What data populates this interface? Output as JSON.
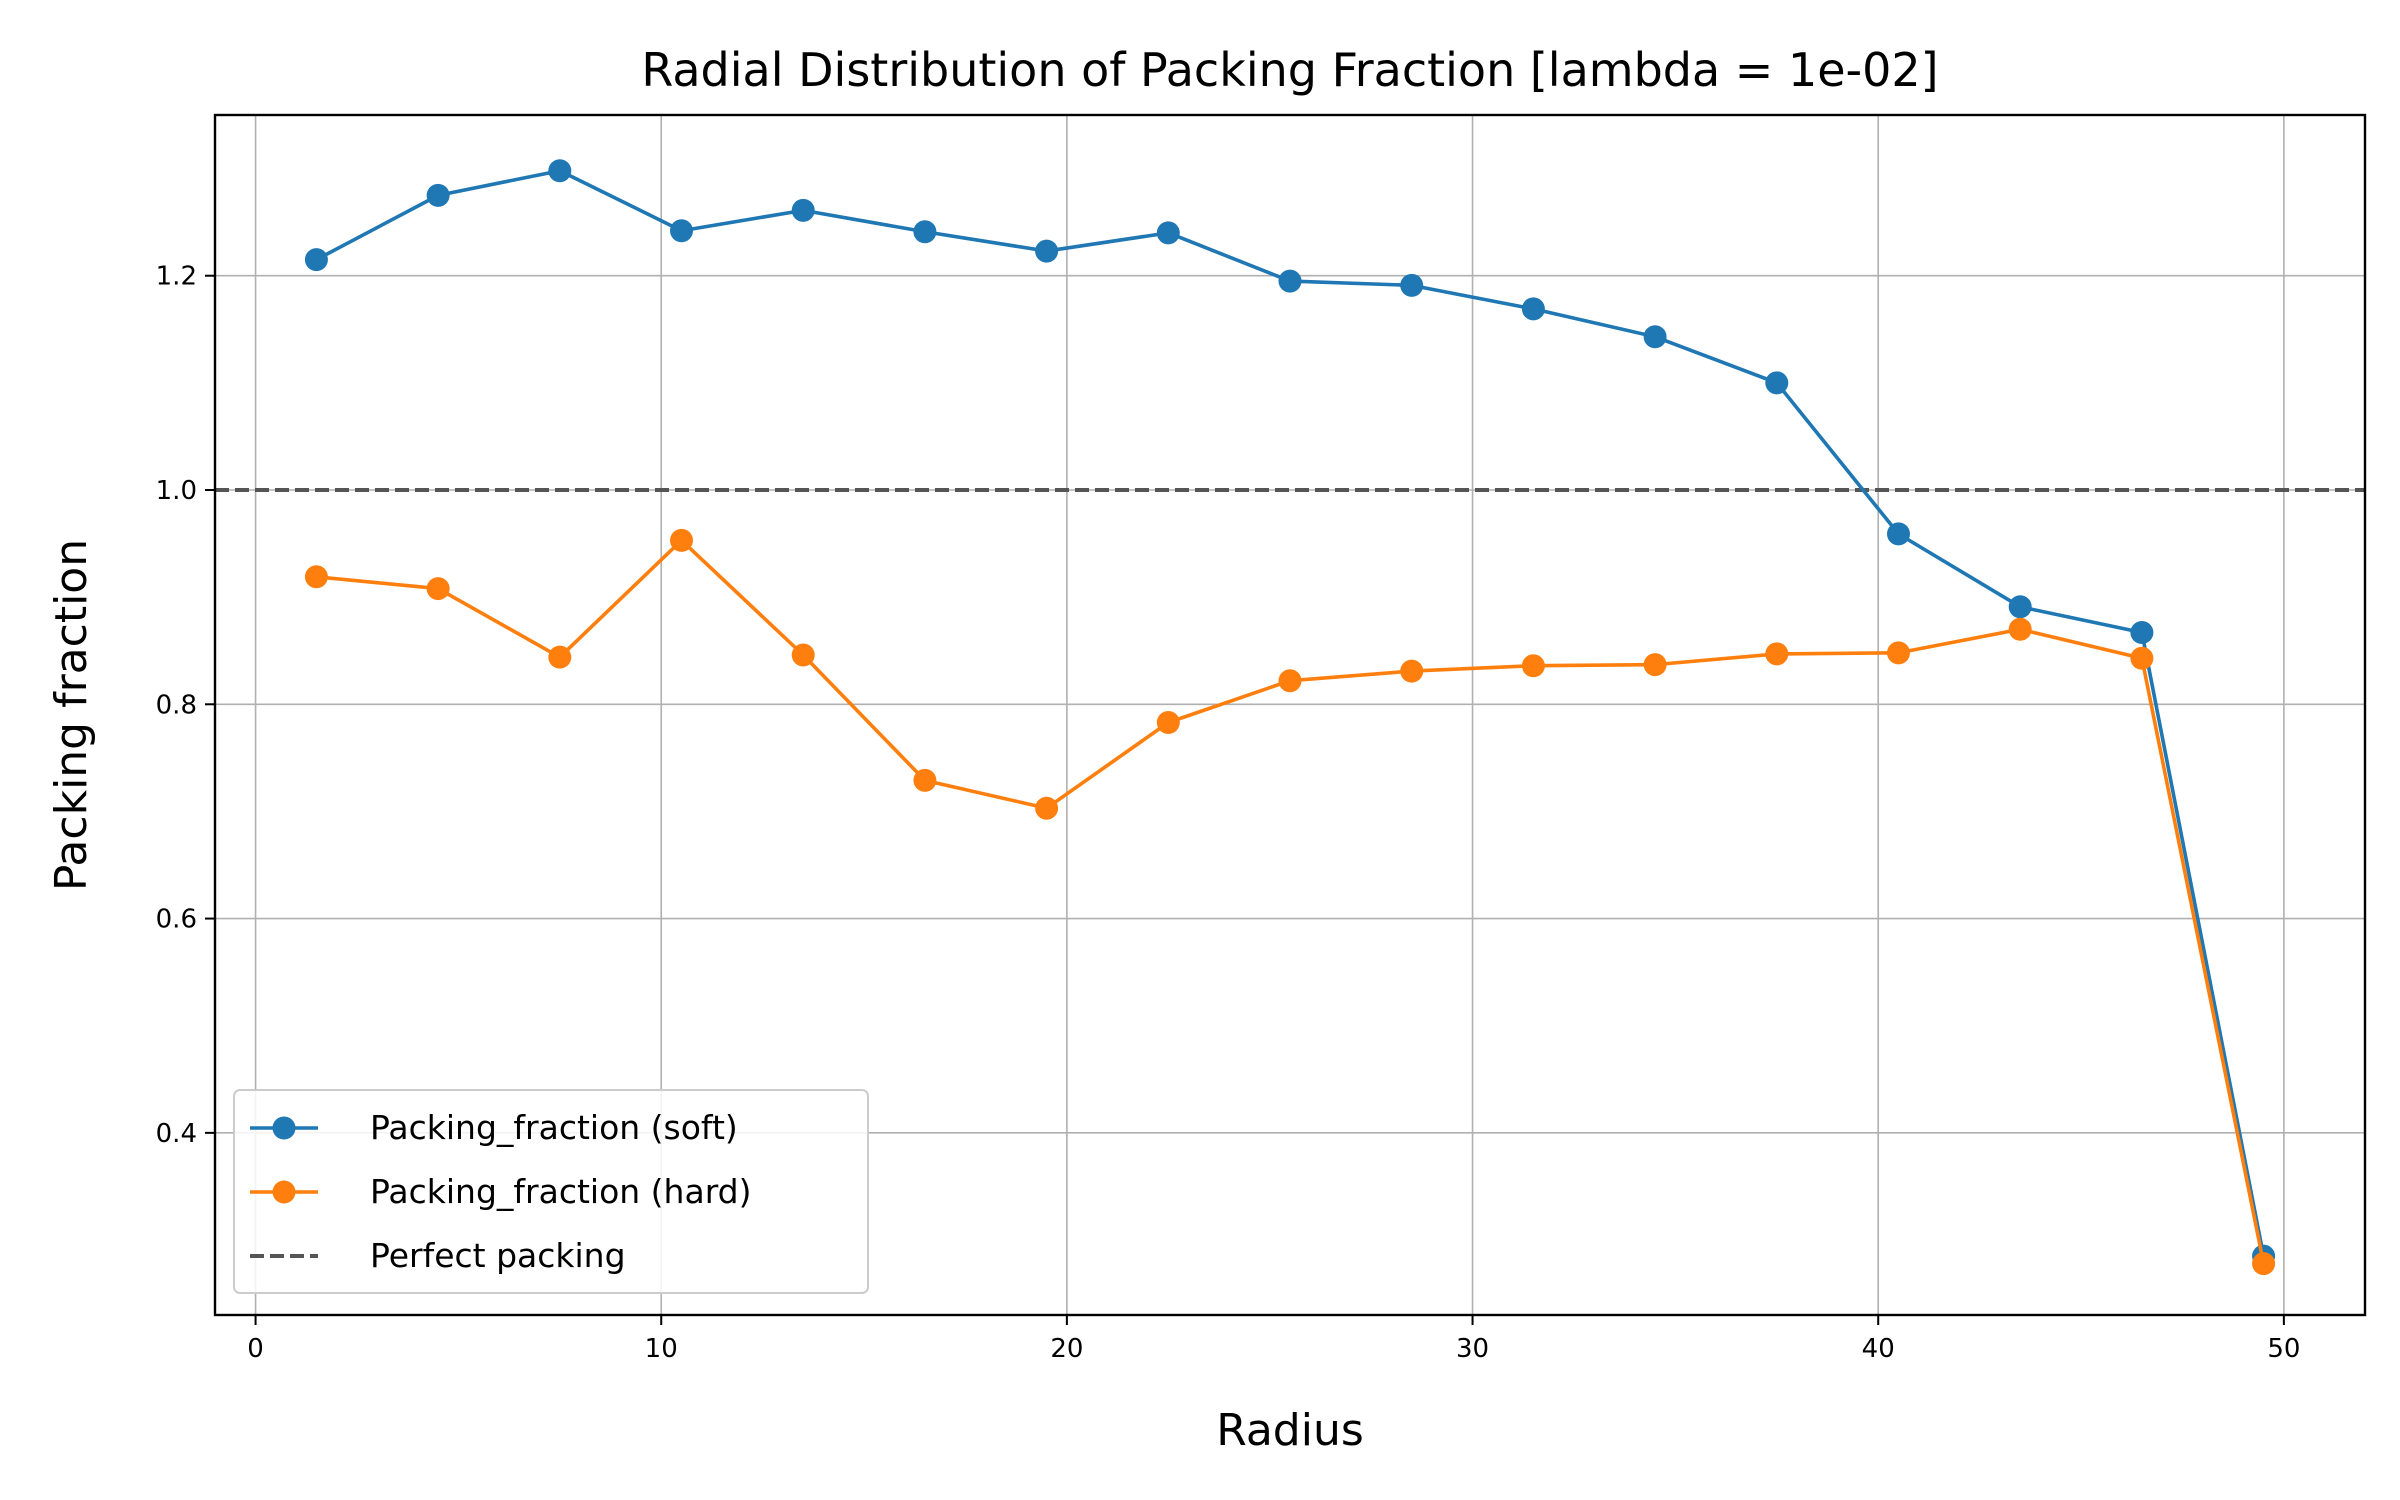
{
  "chart_data": {
    "type": "line",
    "title": "Radial Distribution of Packing Fraction [lambda = 1e-02]",
    "xlabel": "Radius",
    "ylabel": "Packing fraction",
    "xlim": [
      -1.0,
      52.0
    ],
    "ylim": [
      0.23,
      1.35
    ],
    "xticks": [
      0,
      10,
      20,
      30,
      40,
      50
    ],
    "yticks": [
      0.4,
      0.6,
      0.8,
      1.0,
      1.2
    ],
    "grid": true,
    "legend_position": "lower-left",
    "x": [
      1.5,
      4.5,
      7.5,
      10.5,
      13.5,
      16.5,
      19.5,
      22.5,
      25.5,
      28.5,
      31.5,
      34.5,
      37.5,
      40.5,
      43.5,
      46.5,
      49.5
    ],
    "series": [
      {
        "name": "Packing_fraction (soft)",
        "color": "#1f77b4",
        "style": "line-marker",
        "values": [
          1.215,
          1.275,
          1.298,
          1.242,
          1.261,
          1.241,
          1.223,
          1.24,
          1.195,
          1.191,
          1.169,
          1.143,
          1.1,
          0.959,
          0.891,
          0.867,
          0.285
        ]
      },
      {
        "name": "Packing_fraction (hard)",
        "color": "#ff7f0e",
        "style": "line-marker",
        "values": [
          0.919,
          0.908,
          0.844,
          0.953,
          0.846,
          0.729,
          0.703,
          0.783,
          0.822,
          0.831,
          0.836,
          0.837,
          0.847,
          0.848,
          0.87,
          0.843,
          0.278
        ]
      }
    ],
    "reference_line": {
      "name": "Perfect packing",
      "y": 1.0,
      "color": "#555555",
      "style": "dashed"
    }
  }
}
